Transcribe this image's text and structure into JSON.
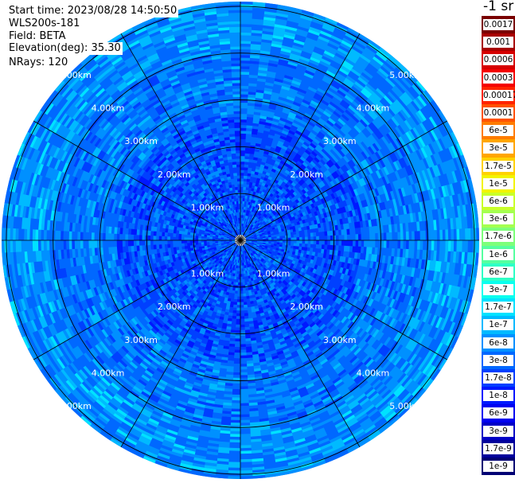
{
  "header": {
    "start_time": "Start time: 2023/08/28 14:50:50",
    "instrument": "WLS200s-181",
    "field": "Field: BETA",
    "elevation": "Elevation(deg): 35.30",
    "nrays": "NRays: 120"
  },
  "colorbar": {
    "unit_label": "-1 sr",
    "entries": [
      {
        "label": "0.0017",
        "color": "#7a0000"
      },
      {
        "label": "0.001",
        "color": "#a80000"
      },
      {
        "label": "0.0006",
        "color": "#d60000"
      },
      {
        "label": "0.0003",
        "color": "#f40000"
      },
      {
        "label": "0.00017",
        "color": "#ff2400"
      },
      {
        "label": "0.0001",
        "color": "#ff5200"
      },
      {
        "label": "6e-5",
        "color": "#ff7c00"
      },
      {
        "label": "3e-5",
        "color": "#ffa600"
      },
      {
        "label": "1.7e-5",
        "color": "#ffd200"
      },
      {
        "label": "1e-5",
        "color": "#f2f400"
      },
      {
        "label": "6e-6",
        "color": "#c9ff2a"
      },
      {
        "label": "3e-6",
        "color": "#a4ff50"
      },
      {
        "label": "1.7e-6",
        "color": "#7dff7a"
      },
      {
        "label": "1e-6",
        "color": "#56ffa0"
      },
      {
        "label": "6e-7",
        "color": "#2effc6"
      },
      {
        "label": "3e-7",
        "color": "#0affee"
      },
      {
        "label": "1.7e-7",
        "color": "#00e2ff"
      },
      {
        "label": "1e-7",
        "color": "#00baff"
      },
      {
        "label": "6e-8",
        "color": "#0090ff"
      },
      {
        "label": "3e-8",
        "color": "#0068ff"
      },
      {
        "label": "1.7e-8",
        "color": "#0040ff"
      },
      {
        "label": "1e-8",
        "color": "#0018ff"
      },
      {
        "label": "6e-9",
        "color": "#0000f0"
      },
      {
        "label": "3e-9",
        "color": "#0000c6"
      },
      {
        "label": "1.7e-9",
        "color": "#00009c"
      },
      {
        "label": "1e-9",
        "color": "#000074"
      }
    ]
  },
  "range_rings": {
    "values_km": [
      1,
      2,
      3,
      4,
      5
    ],
    "labels": [
      "1.00km",
      "2.00km",
      "3.00km",
      "4.00km",
      "5.00km"
    ]
  },
  "plot": {
    "n_rays": 120,
    "spoke_count": 12,
    "background_color": "#1a6cf4"
  }
}
